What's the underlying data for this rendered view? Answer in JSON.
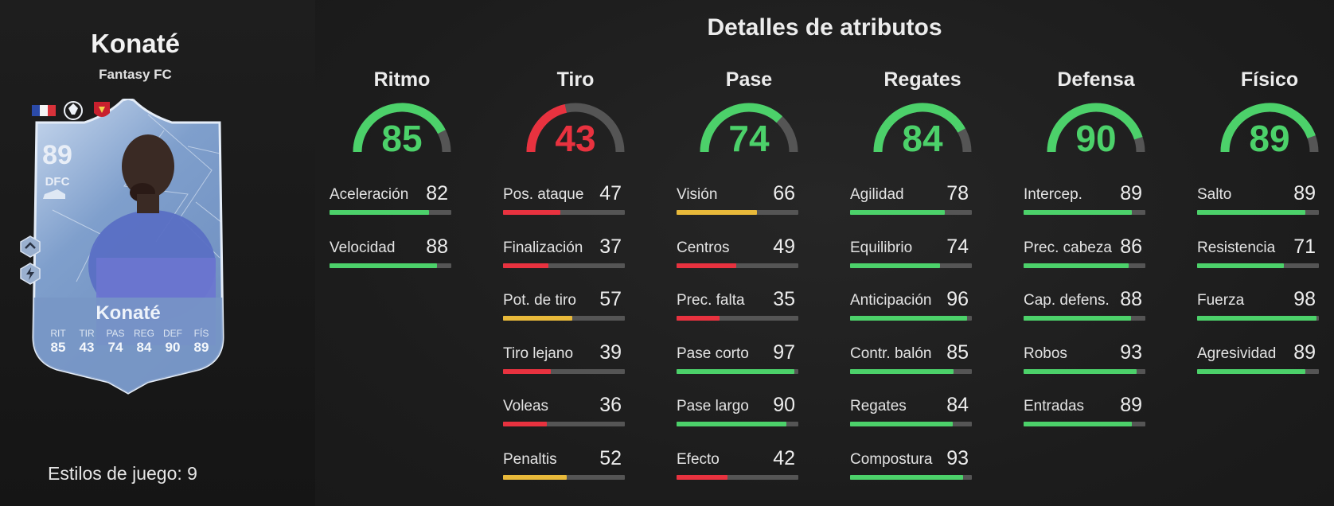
{
  "player": {
    "name": "Konaté",
    "subtitle": "Fantasy FC",
    "playstyles_text": "Estilos de juego: 9"
  },
  "card": {
    "rating": "89",
    "position": "DFC",
    "name": "Konaté",
    "stats": [
      {
        "label": "RIT",
        "value": "85"
      },
      {
        "label": "TIR",
        "value": "43"
      },
      {
        "label": "PAS",
        "value": "74"
      },
      {
        "label": "REG",
        "value": "84"
      },
      {
        "label": "DEF",
        "value": "90"
      },
      {
        "label": "FÍS",
        "value": "89"
      }
    ],
    "badges": [
      "france-flag-icon",
      "premier-league-icon",
      "liverpool-crest-icon"
    ],
    "side_icons": [
      "playstyle-icon",
      "chemistry-icon"
    ]
  },
  "title": "Detalles de atributos",
  "colors": {
    "high": "#4cd16a",
    "mid": "#e8b93a",
    "low": "#e8323f",
    "track": "#555555"
  },
  "categories": [
    {
      "name": "Ritmo",
      "value": 85,
      "attributes": [
        {
          "name": "Aceleración",
          "value": 82
        },
        {
          "name": "Velocidad",
          "value": 88
        }
      ]
    },
    {
      "name": "Tiro",
      "value": 43,
      "attributes": [
        {
          "name": "Pos. ataque",
          "value": 47
        },
        {
          "name": "Finalización",
          "value": 37
        },
        {
          "name": "Pot. de tiro",
          "value": 57
        },
        {
          "name": "Tiro lejano",
          "value": 39
        },
        {
          "name": "Voleas",
          "value": 36
        },
        {
          "name": "Penaltis",
          "value": 52
        }
      ]
    },
    {
      "name": "Pase",
      "value": 74,
      "attributes": [
        {
          "name": "Visión",
          "value": 66
        },
        {
          "name": "Centros",
          "value": 49
        },
        {
          "name": "Prec. falta",
          "value": 35
        },
        {
          "name": "Pase corto",
          "value": 97
        },
        {
          "name": "Pase largo",
          "value": 90
        },
        {
          "name": "Efecto",
          "value": 42
        }
      ]
    },
    {
      "name": "Regates",
      "value": 84,
      "attributes": [
        {
          "name": "Agilidad",
          "value": 78
        },
        {
          "name": "Equilibrio",
          "value": 74
        },
        {
          "name": "Anticipación",
          "value": 96
        },
        {
          "name": "Contr. balón",
          "value": 85
        },
        {
          "name": "Regates",
          "value": 84
        },
        {
          "name": "Compostura",
          "value": 93
        }
      ]
    },
    {
      "name": "Defensa",
      "value": 90,
      "attributes": [
        {
          "name": "Intercep.",
          "value": 89
        },
        {
          "name": "Prec. cabeza",
          "value": 86
        },
        {
          "name": "Cap. defens.",
          "value": 88
        },
        {
          "name": "Robos",
          "value": 93
        },
        {
          "name": "Entradas",
          "value": 89
        }
      ]
    },
    {
      "name": "Físico",
      "value": 89,
      "attributes": [
        {
          "name": "Salto",
          "value": 89
        },
        {
          "name": "Resistencia",
          "value": 71
        },
        {
          "name": "Fuerza",
          "value": 98
        },
        {
          "name": "Agresividad",
          "value": 89
        }
      ]
    }
  ]
}
